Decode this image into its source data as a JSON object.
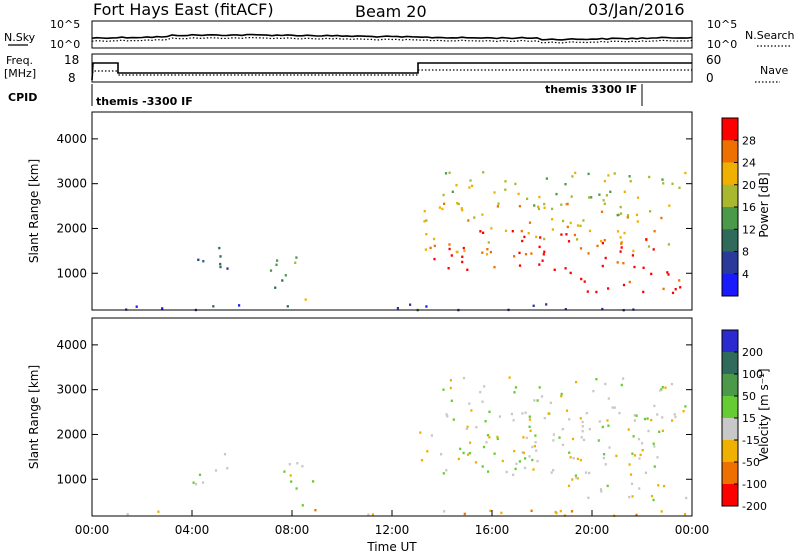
{
  "header": {
    "station": "Fort Hays East (fitACF)",
    "beam": "Beam 20",
    "date": "03/Jan/2016"
  },
  "top_panels": {
    "nsky_label": "N.Sky",
    "nsearch_label": "N.Search",
    "noise_ticks": [
      "10^5",
      "10^0"
    ],
    "freq_label_1": "Freq.",
    "freq_label_2": "[MHz]",
    "freq_ticks": [
      "18",
      "8"
    ],
    "nave_label": "Nave",
    "nave_ticks": [
      "60",
      "0"
    ],
    "cpid_label": "CPID",
    "cpid_1": "themis -3300 IF",
    "cpid_2": "themis 3300 IF"
  },
  "chart_data": [
    {
      "type": "heatmap",
      "name": "Power",
      "xlabel": "Time UT",
      "ylabel": "Slant Range [km]",
      "xlim": [
        0,
        24
      ],
      "ylim": [
        180,
        4600
      ],
      "yticks": [
        "1000",
        "2000",
        "3000",
        "4000"
      ],
      "colorbar_label": "Power [dB]",
      "colorbar_ticks": [
        "4",
        "8",
        "12",
        "16",
        "20",
        "24",
        "28"
      ],
      "colors": [
        "#1a1aff",
        "#2a3a9a",
        "#2f6a5a",
        "#4a9a4a",
        "#aab830",
        "#f0b000",
        "#ee7000",
        "#ff0000"
      ],
      "regions": [
        {
          "t0": 4.0,
          "t1": 5.6,
          "r0": 900,
          "r1": 1650,
          "level": 2
        },
        {
          "t0": 7.1,
          "t1": 9.0,
          "r0": 600,
          "r1": 1400,
          "level": 3
        },
        {
          "t0": 7.8,
          "t1": 8.8,
          "r0": 350,
          "r1": 600,
          "level": 6
        },
        {
          "t0": 13.0,
          "t1": 23.2,
          "r0": 1400,
          "r1": 2600,
          "level": 5
        },
        {
          "t0": 13.5,
          "t1": 22.8,
          "r0": 1100,
          "r1": 2000,
          "level": 7
        },
        {
          "t0": 19.0,
          "t1": 24.0,
          "r0": 500,
          "r1": 1100,
          "level": 7
        },
        {
          "t0": 14.0,
          "t1": 23.8,
          "r0": 2300,
          "r1": 3300,
          "level": 4
        },
        {
          "t0": 1.0,
          "t1": 24.0,
          "r0": 200,
          "r1": 350,
          "level": 1
        }
      ]
    },
    {
      "type": "heatmap",
      "name": "Velocity",
      "xlabel": "Time UT",
      "ylabel": "Slant Range [km]",
      "xlim": [
        0,
        24
      ],
      "ylim": [
        180,
        4600
      ],
      "xticks": [
        "00:00",
        "04:00",
        "08:00",
        "12:00",
        "16:00",
        "20:00",
        "00:00"
      ],
      "yticks": [
        "1000",
        "2000",
        "3000",
        "4000"
      ],
      "colorbar_label": "Velocity [m s⁻¹]",
      "colorbar_ticks": [
        "200",
        "100",
        "50",
        "15",
        "-15",
        "-50",
        "-100",
        "-200"
      ],
      "colors": [
        "#2a2ad0",
        "#2f6a5a",
        "#4a9a4a",
        "#66cc33",
        "#c8c8c8",
        "#f0b000",
        "#ee7000",
        "#ff0000"
      ],
      "regions": [
        {
          "t0": 4.0,
          "t1": 5.6,
          "r0": 900,
          "r1": 1650,
          "level": 4
        },
        {
          "t0": 7.1,
          "t1": 9.0,
          "r0": 600,
          "r1": 1400,
          "level": 4
        },
        {
          "t0": 7.8,
          "t1": 8.8,
          "r0": 350,
          "r1": 600,
          "level": 3
        },
        {
          "t0": 13.0,
          "t1": 23.2,
          "r0": 1400,
          "r1": 2600,
          "level": 4
        },
        {
          "t0": 13.5,
          "t1": 22.8,
          "r0": 1100,
          "r1": 2000,
          "level": 4
        },
        {
          "t0": 19.0,
          "t1": 24.0,
          "r0": 500,
          "r1": 1100,
          "level": 4
        },
        {
          "t0": 14.0,
          "t1": 23.8,
          "r0": 2300,
          "r1": 3300,
          "level": 4
        },
        {
          "t0": 1.0,
          "t1": 24.0,
          "r0": 200,
          "r1": 350,
          "level": 5
        }
      ]
    }
  ]
}
